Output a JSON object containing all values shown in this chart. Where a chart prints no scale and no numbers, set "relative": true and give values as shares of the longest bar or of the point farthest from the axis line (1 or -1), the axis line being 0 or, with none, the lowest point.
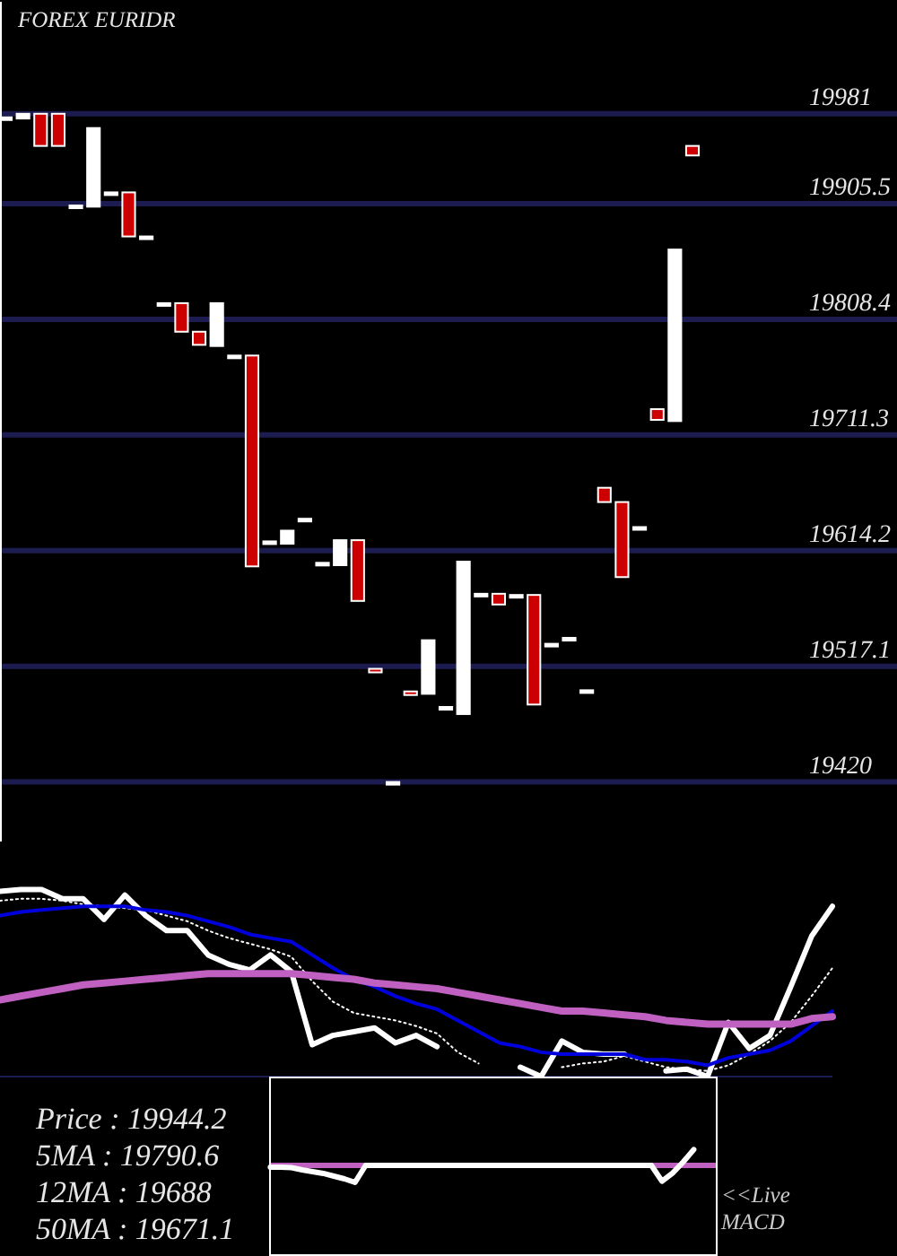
{
  "chart_data": [
    {
      "type": "candlestick",
      "title": "FOREX EURIDR",
      "categories": [
        null,
        null,
        null,
        null,
        null,
        null,
        null,
        null,
        null,
        null,
        null,
        null,
        null,
        null,
        null,
        null,
        null,
        null,
        null,
        null,
        null,
        null,
        null,
        null,
        null,
        null,
        null,
        null,
        null,
        null,
        null,
        null,
        null,
        null,
        null,
        null,
        null,
        null,
        null,
        null
      ],
      "ohlc": [
        [
          19978,
          19978,
          19978,
          19978
        ],
        [
          19977,
          19981,
          19977,
          19981
        ],
        [
          19981,
          19981,
          19954,
          19954
        ],
        [
          19981,
          19981,
          19954,
          19954
        ],
        [
          19904,
          19904,
          19904,
          19904
        ],
        [
          19903,
          19969,
          19903,
          19969
        ],
        [
          19915,
          19915,
          19915,
          19915
        ],
        [
          19915,
          19915,
          19878,
          19878
        ],
        [
          19878,
          19878,
          19878,
          19878
        ],
        [
          19822,
          19822,
          19822,
          19822
        ],
        [
          19822,
          19822,
          19798,
          19798
        ],
        [
          19798,
          19798,
          19787,
          19787
        ],
        [
          19786,
          19822,
          19786,
          19822
        ],
        [
          19778,
          19778,
          19778,
          19778
        ],
        [
          19778,
          19778,
          19601,
          19601
        ],
        [
          19622,
          19622,
          19622,
          19622
        ],
        [
          19620,
          19631,
          19620,
          19631
        ],
        [
          19641,
          19641,
          19641,
          19641
        ],
        [
          19604,
          19604,
          19604,
          19604
        ],
        [
          19602,
          19623,
          19602,
          19623
        ],
        [
          19623,
          19623,
          19572,
          19572
        ],
        [
          19515,
          19515,
          19512,
          19512
        ],
        [
          19420,
          19420,
          19420,
          19420
        ],
        [
          19496,
          19496,
          19493,
          19493
        ],
        [
          19494,
          19539,
          19494,
          19539
        ],
        [
          19483,
          19483,
          19483,
          19483
        ],
        [
          19477,
          19605,
          19477,
          19605
        ],
        [
          19578,
          19578,
          19578,
          19578
        ],
        [
          19578,
          19578,
          19569,
          19569
        ],
        [
          19577,
          19577,
          19577,
          19577
        ],
        [
          19577,
          19577,
          19485,
          19485
        ],
        [
          19536,
          19536,
          19536,
          19536
        ],
        [
          19541,
          19541,
          19541,
          19541
        ],
        [
          19497,
          19497,
          19497,
          19497
        ],
        [
          19667,
          19667,
          19655,
          19655
        ],
        [
          19655,
          19655,
          19592,
          19592
        ],
        [
          19634,
          19634,
          19634,
          19634
        ],
        [
          19733,
          19733,
          19724,
          19724
        ],
        [
          19723,
          19867,
          19723,
          19867
        ],
        [
          19954,
          19954,
          19946,
          19946
        ]
      ],
      "colors": [
        "#ffffff",
        "#ffffff",
        "#cc0000",
        "#cc0000",
        "#ffffff",
        "#ffffff",
        "#ffffff",
        "#cc0000",
        "#ffffff",
        "#ffffff",
        "#cc0000",
        "#cc0000",
        "#ffffff",
        "#ffffff",
        "#cc0000",
        "#ffffff",
        "#ffffff",
        "#ffffff",
        "#ffffff",
        "#ffffff",
        "#cc0000",
        "#cc0000",
        "#ffffff",
        "#cc0000",
        "#ffffff",
        "#ffffff",
        "#ffffff",
        "#ffffff",
        "#cc0000",
        "#ffffff",
        "#cc0000",
        "#ffffff",
        "#ffffff",
        "#ffffff",
        "#cc0000",
        "#cc0000",
        "#ffffff",
        "#cc0000",
        "#ffffff",
        "#cc0000"
      ],
      "ylim": [
        19370,
        20075
      ],
      "yticks": [
        19420,
        19517.1,
        19614.2,
        19711.3,
        19808.4,
        19905.5,
        19981
      ],
      "grid": "y",
      "tick_labels": "y"
    },
    {
      "type": "line",
      "relative": true,
      "categories": [
        null,
        null,
        null,
        null,
        null,
        null,
        null,
        null,
        null,
        null,
        null,
        null,
        null,
        null,
        null,
        null,
        null,
        null,
        null,
        null,
        null,
        null,
        null,
        null,
        null,
        null,
        null,
        null,
        null,
        null,
        null,
        null,
        null,
        null,
        null,
        null,
        null,
        null,
        null,
        null,
        null
      ],
      "series": [
        {
          "color": "#ffffff",
          "values": [
            0.99,
            1,
            1,
            0.95,
            0.95,
            0.84,
            0.97,
            0.86,
            0.78,
            0.78,
            0.65,
            0.6,
            0.57,
            0.65,
            0.56,
            0.17,
            0.22,
            0.24,
            0.26,
            0.18,
            0.22,
            0.16,
            null,
            null,
            null,
            0.05,
            0,
            0.19,
            0.13,
            0.12,
            0.12,
            null,
            0.03,
            0.04,
            0,
            0.29,
            0.15,
            0.22,
            0.48,
            0.75,
            0.91
          ]
        },
        {
          "color": "#ffffff",
          "line_style": "dotted",
          "values": [
            0.94,
            0.95,
            0.95,
            0.94,
            0.92,
            0.91,
            0.9,
            0.89,
            0.86,
            0.83,
            0.78,
            0.74,
            0.71,
            0.68,
            0.64,
            0.51,
            0.4,
            0.34,
            0.32,
            0.3,
            0.27,
            0.23,
            0.13,
            0.07,
            null,
            null,
            null,
            0.05,
            0.07,
            0.08,
            0.11,
            0.08,
            0.05,
            0.04,
            0.03,
            0.06,
            0.12,
            0.19,
            0.29,
            0.43,
            0.58
          ]
        },
        {
          "color": "#0000dd",
          "values": [
            0.86,
            0.88,
            0.89,
            0.9,
            0.91,
            0.91,
            0.91,
            0.89,
            0.88,
            0.86,
            0.83,
            0.8,
            0.76,
            0.74,
            0.72,
            0.65,
            0.58,
            0.52,
            0.48,
            0.43,
            0.39,
            0.36,
            0.3,
            0.24,
            0.18,
            0.16,
            0.13,
            0.12,
            0.12,
            0.12,
            0.12,
            0.09,
            0.09,
            0.08,
            0.06,
            0.1,
            0.12,
            0.14,
            0.19,
            0.27,
            0.35
          ]
        },
        {
          "color": "#c060c0",
          "values": [
            0.41,
            0.43,
            0.45,
            0.47,
            0.49,
            0.5,
            0.51,
            0.52,
            0.53,
            0.54,
            0.55,
            0.55,
            0.55,
            0.55,
            0.55,
            0.54,
            0.53,
            0.52,
            0.5,
            0.49,
            0.48,
            0.47,
            0.45,
            0.43,
            0.41,
            0.39,
            0.37,
            0.35,
            0.35,
            0.34,
            0.33,
            0.32,
            0.3,
            0.29,
            0.28,
            0.28,
            0.28,
            0.28,
            0.28,
            0.31,
            0.32
          ]
        }
      ],
      "annotations": [
        "Price : 19944.2",
        "5MA : 19790.6",
        "12MA : 19688",
        "50MA : 19671.1"
      ],
      "tick_labels": false
    },
    {
      "type": "line",
      "relative": true,
      "title": "<<Live MACD",
      "categories": [
        null,
        null,
        null,
        null,
        null,
        null,
        null,
        null,
        null,
        null,
        null,
        null,
        null,
        null,
        null,
        null,
        null,
        null,
        null,
        null,
        null,
        null,
        null,
        null,
        null,
        null,
        null,
        null,
        null,
        null,
        null,
        null,
        null,
        null,
        null,
        null,
        null,
        null,
        null,
        null,
        null
      ],
      "series": [
        {
          "color": "#ffffff",
          "values": [
            -0.1,
            -0.1,
            -0.13,
            -0.26,
            -0.37,
            -0.47,
            -0.63,
            -0.79,
            -1,
            0,
            0,
            0,
            0,
            0,
            0,
            0,
            0,
            0,
            0,
            0,
            0,
            0,
            0,
            0,
            0,
            0,
            0,
            0,
            0,
            0,
            0,
            0,
            0,
            0,
            0,
            0,
            0,
            -0.93,
            -0.45,
            0.2,
            0.93
          ]
        }
      ],
      "ref_lines": [
        {
          "axis": "y",
          "value": 0,
          "color": "#c060c0"
        }
      ],
      "tick_labels": false
    }
  ]
}
